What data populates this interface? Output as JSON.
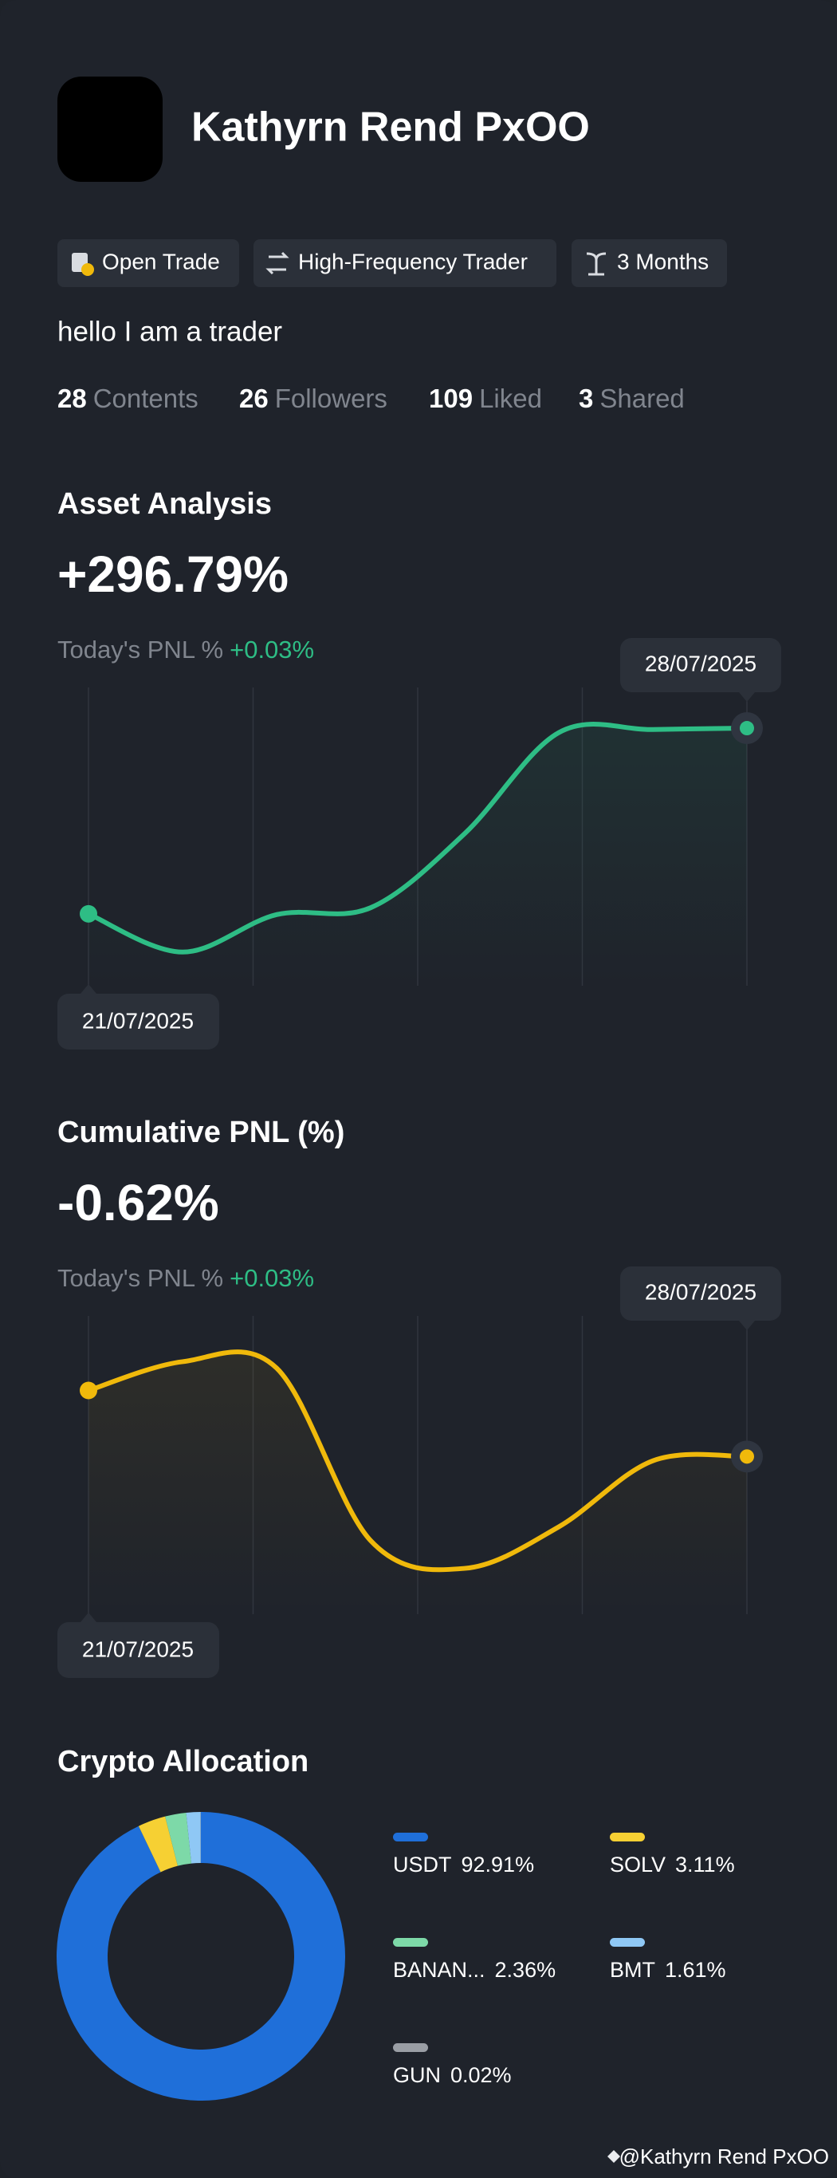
{
  "profile": {
    "name": "Kathyrn Rend PxOO",
    "tags": [
      "Open Trade",
      "High-Frequency Trader",
      "3 Months"
    ],
    "bio": "hello I am a trader",
    "stats": [
      {
        "value": 28,
        "label": "Contents"
      },
      {
        "value": 26,
        "label": "Followers"
      },
      {
        "value": 109,
        "label": "Liked"
      },
      {
        "value": 3,
        "label": "Shared"
      }
    ]
  },
  "chart_data": [
    {
      "type": "line",
      "title": "Asset Analysis",
      "headline": "+296.79%",
      "today_label": "Today's PNL %",
      "today_value": "+0.03%",
      "categories": [
        "21/07/2025",
        null,
        null,
        null,
        null,
        null,
        null,
        "28/07/2025"
      ],
      "values": [
        54,
        4,
        53,
        62,
        159,
        291,
        295,
        296.79
      ],
      "ylim": [
        -40,
        350
      ],
      "color": "#2ebd85",
      "headline_color": "#2ebd85"
    },
    {
      "type": "line",
      "title": "Cumulative PNL (%)",
      "headline": "-0.62%",
      "today_label": "Today's PNL %",
      "today_value": "+0.03%",
      "categories": [
        "21/07/2025",
        null,
        null,
        null,
        null,
        null,
        null,
        "28/07/2025"
      ],
      "values": [
        0,
        0.27,
        0.21,
        -1.41,
        -1.67,
        -1.28,
        -0.66,
        -0.62
      ],
      "ylim": [
        -2.1,
        0.7
      ],
      "color": "#f0b90b",
      "headline_color": "#f6465d"
    },
    {
      "type": "pie",
      "title": "Crypto Allocation",
      "categories": [
        "USDT",
        "SOLV",
        "BANAN...",
        "BMT",
        "GUN"
      ],
      "values": [
        92.91,
        3.11,
        2.36,
        1.61,
        0.02
      ],
      "value_labels": [
        "92.91%",
        "3.11%",
        "2.36%",
        "1.61%",
        "0.02%"
      ],
      "colors": [
        "#1f6fd9",
        "#f6d033",
        "#7dd9a8",
        "#8fc8f5",
        "#9a9ea5"
      ]
    }
  ],
  "footer": "@Kathyrn Rend PxOO"
}
